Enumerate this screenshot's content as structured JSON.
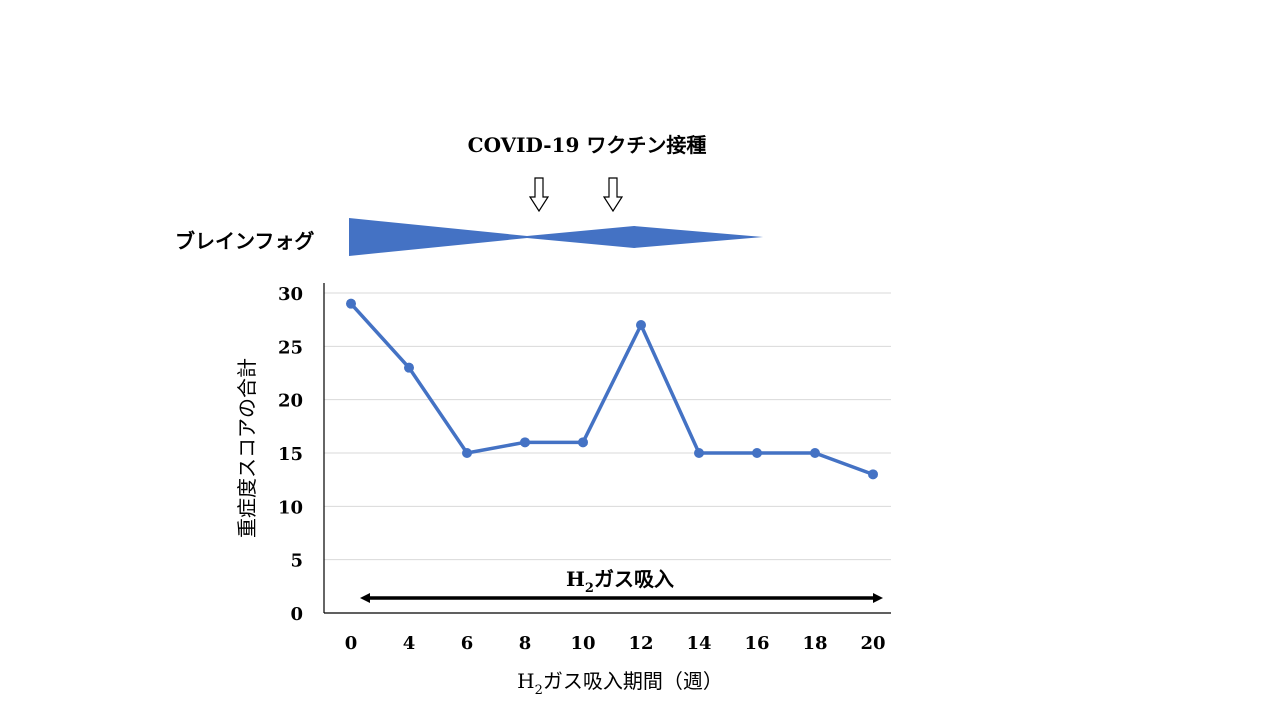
{
  "vaccine_label": "COVID-19 ワクチン接種",
  "brain_fog_label": "ブレインフォグ",
  "h2_period_label": {
    "h": "H",
    "sub": "2",
    "rest": "ガス吸入"
  },
  "colors": {
    "line": "#4472C4",
    "fog": "#4472C4",
    "bar": "#000000",
    "grid": "#d9d9d9"
  },
  "icons": {
    "vaccine_marker": "down-arrow-outline-icon"
  },
  "chart_data": {
    "type": "line",
    "title": "",
    "ylabel": "重症度スコアの合計",
    "xlabel": {
      "h": "H",
      "sub": "2",
      "rest": "ガス吸入期間（週）"
    },
    "ylim": [
      0,
      30
    ],
    "yticks": [
      "0",
      "5",
      "10",
      "15",
      "20",
      "25",
      "30"
    ],
    "categories": [
      "0",
      "4",
      "6",
      "8",
      "10",
      "12",
      "14",
      "16",
      "18",
      "20"
    ],
    "grid": true,
    "series": [
      {
        "values": [
          29,
          23,
          15,
          16,
          16,
          27,
          15,
          15,
          15,
          13
        ]
      }
    ]
  }
}
